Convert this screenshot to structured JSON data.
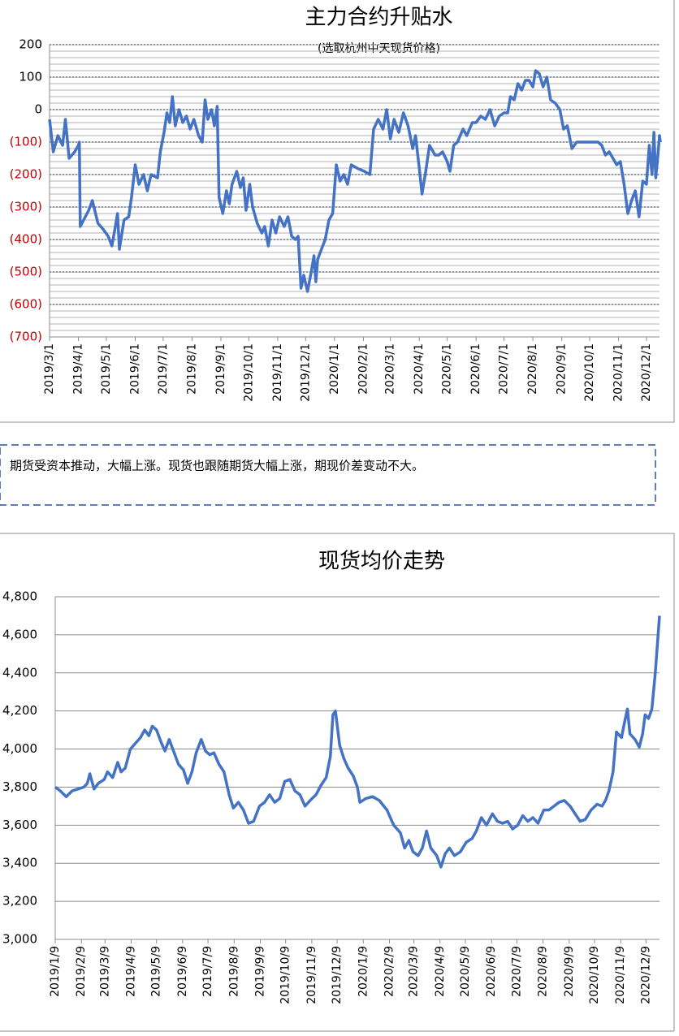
{
  "chart_data": [
    {
      "type": "line",
      "title": "主力合约升贴水",
      "subtitle": "(选取杭州中天现货价格)",
      "x": [
        "2019/3/1",
        "2019/3/5",
        "2019/3/10",
        "2019/3/15",
        "2019/3/18",
        "2019/3/22",
        "2019/3/28",
        "2019/4/1",
        "2019/4/2",
        "2019/4/3",
        "2019/4/12",
        "2019/4/16",
        "2019/4/22",
        "2019/4/28",
        "2019/5/3",
        "2019/5/7",
        "2019/5/10",
        "2019/5/13",
        "2019/5/15",
        "2019/5/20",
        "2019/5/25",
        "2019/5/28",
        "2019/6/1",
        "2019/6/5",
        "2019/6/10",
        "2019/6/14",
        "2019/6/18",
        "2019/6/25",
        "2019/6/28",
        "2019/7/2",
        "2019/7/5",
        "2019/7/8",
        "2019/7/11",
        "2019/7/14",
        "2019/7/18",
        "2019/7/22",
        "2019/7/26",
        "2019/7/30",
        "2019/8/3",
        "2019/8/8",
        "2019/8/12",
        "2019/8/15",
        "2019/8/18",
        "2019/8/22",
        "2019/8/25",
        "2019/8/28",
        "2019/8/30",
        "2019/9/3",
        "2019/9/7",
        "2019/9/10",
        "2019/9/13",
        "2019/9/18",
        "2019/9/22",
        "2019/9/25",
        "2019/9/28",
        "2019/10/2",
        "2019/10/5",
        "2019/10/10",
        "2019/10/15",
        "2019/10/18",
        "2019/10/22",
        "2019/10/26",
        "2019/10/30",
        "2019/11/3",
        "2019/11/8",
        "2019/11/12",
        "2019/11/16",
        "2019/11/20",
        "2019/11/23",
        "2019/11/26",
        "2019/11/29",
        "2019/12/3",
        "2019/12/7",
        "2019/12/10",
        "2019/12/12",
        "2019/12/14",
        "2019/12/18",
        "2019/12/22",
        "2019/12/26",
        "2019/12/30",
        "2020/1/3",
        "2020/1/7",
        "2020/1/11",
        "2020/1/15",
        "2020/1/19",
        "2020/1/25",
        "2020/2/2",
        "2020/2/8",
        "2020/2/12",
        "2020/2/17",
        "2020/2/22",
        "2020/2/26",
        "2020/3/1",
        "2020/3/5",
        "2020/3/10",
        "2020/3/15",
        "2020/3/20",
        "2020/3/25",
        "2020/3/28",
        "2020/4/1",
        "2020/4/4",
        "2020/4/8",
        "2020/4/12",
        "2020/4/18",
        "2020/4/22",
        "2020/4/26",
        "2020/5/1",
        "2020/5/4",
        "2020/5/8",
        "2020/5/12",
        "2020/5/18",
        "2020/5/22",
        "2020/5/28",
        "2020/6/1",
        "2020/6/6",
        "2020/6/11",
        "2020/6/16",
        "2020/6/21",
        "2020/6/26",
        "2020/7/1",
        "2020/7/5",
        "2020/7/8",
        "2020/7/12",
        "2020/7/16",
        "2020/7/20",
        "2020/7/24",
        "2020/7/28",
        "2020/8/1",
        "2020/8/4",
        "2020/8/8",
        "2020/8/12",
        "2020/8/16",
        "2020/8/20",
        "2020/8/25",
        "2020/8/30",
        "2020/9/3",
        "2020/9/7",
        "2020/9/12",
        "2020/9/17",
        "2020/9/22",
        "2020/9/28",
        "2020/10/4",
        "2020/10/10",
        "2020/10/14",
        "2020/10/18",
        "2020/10/22",
        "2020/10/26",
        "2020/10/30",
        "2020/11/3",
        "2020/11/7",
        "2020/11/11",
        "2020/11/15",
        "2020/11/19",
        "2020/11/23",
        "2020/11/27",
        "2020/12/1",
        "2020/12/4",
        "2020/12/7",
        "2020/12/9",
        "2020/12/11",
        "2020/12/13",
        "2020/12/15",
        "2020/12/16"
      ],
      "series": [
        {
          "color": "#4472c4",
          "values": [
            -30,
            -130,
            -80,
            -110,
            -30,
            -150,
            -130,
            -110,
            -100,
            -360,
            -310,
            -280,
            -350,
            -370,
            -390,
            -420,
            -370,
            -320,
            -430,
            -340,
            -330,
            -270,
            -170,
            -230,
            -200,
            -250,
            -200,
            -210,
            -130,
            -70,
            -10,
            -40,
            40,
            -50,
            0,
            -40,
            -20,
            -60,
            -30,
            -80,
            -100,
            30,
            -30,
            0,
            -50,
            10,
            -270,
            -320,
            -250,
            -290,
            -230,
            -190,
            -240,
            -210,
            -310,
            -230,
            -300,
            -350,
            -380,
            -360,
            -420,
            -340,
            -380,
            -330,
            -360,
            -330,
            -390,
            -400,
            -390,
            -550,
            -510,
            -560,
            -500,
            -450,
            -530,
            -460,
            -430,
            -400,
            -340,
            -320,
            -170,
            -220,
            -200,
            -230,
            -170,
            -180,
            -190,
            -200,
            -60,
            -30,
            -60,
            0,
            -90,
            -30,
            -70,
            -10,
            -50,
            -120,
            -80,
            -180,
            -260,
            -190,
            -110,
            -140,
            -140,
            -130,
            -160,
            -190,
            -110,
            -100,
            -60,
            -80,
            -40,
            -40,
            -20,
            -30,
            0,
            -50,
            -20,
            -10,
            -10,
            40,
            30,
            80,
            60,
            90,
            90,
            70,
            120,
            110,
            70,
            100,
            30,
            20,
            0,
            -60,
            -50,
            -120,
            -100,
            -100,
            -100,
            -100,
            -100,
            -110,
            -140,
            -130,
            -150,
            -170,
            -160,
            -230,
            -320,
            -280,
            -250,
            -330,
            -220,
            -230,
            -110,
            -200,
            -70,
            -210,
            -150,
            -80,
            -100
          ]
        }
      ],
      "ylim": [
        -700,
        200
      ],
      "yticks": [
        {
          "value": -700,
          "label": "(700)"
        },
        {
          "value": -600,
          "label": "(600)"
        },
        {
          "value": -500,
          "label": "(500)"
        },
        {
          "value": -400,
          "label": "(400)"
        },
        {
          "value": -300,
          "label": "(300)"
        },
        {
          "value": -200,
          "label": "(200)"
        },
        {
          "value": -100,
          "label": "(100)"
        },
        0,
        100,
        200
      ],
      "xticks": [
        "2019/3/1",
        "2019/4/1",
        "2019/5/1",
        "2019/6/1",
        "2019/7/1",
        "2019/8/1",
        "2019/9/1",
        "2019/10/1",
        "2019/11/1",
        "2019/12/1",
        "2020/1/1",
        "2020/2/1",
        "2020/3/1",
        "2020/4/1",
        "2020/5/1",
        "2020/6/1",
        "2020/7/1",
        "2020/8/1",
        "2020/9/1",
        "2020/10/1",
        "2020/11/1",
        "2020/12/1"
      ],
      "xlim": [
        "2019/3/1",
        "2020/12/15"
      ],
      "grid": true,
      "grid_style": "dotted",
      "minor_grid_step": 20,
      "negative_label_color": "#c00000"
    },
    {
      "type": "line",
      "title": "现货均价走势",
      "x": [
        "2019/1/9",
        "2019/1/15",
        "2019/1/22",
        "2019/1/29",
        "2019/2/5",
        "2019/2/12",
        "2019/2/16",
        "2019/2/19",
        "2019/2/24",
        "2019/3/1",
        "2019/3/8",
        "2019/3/12",
        "2019/3/18",
        "2019/3/24",
        "2019/3/28",
        "2019/4/2",
        "2019/4/8",
        "2019/4/14",
        "2019/4/20",
        "2019/4/25",
        "2019/4/30",
        "2019/5/4",
        "2019/5/9",
        "2019/5/15",
        "2019/5/19",
        "2019/5/24",
        "2019/5/30",
        "2019/6/4",
        "2019/6/10",
        "2019/6/15",
        "2019/6/20",
        "2019/6/25",
        "2019/7/1",
        "2019/7/6",
        "2019/7/11",
        "2019/7/16",
        "2019/7/22",
        "2019/7/28",
        "2019/8/3",
        "2019/8/8",
        "2019/8/14",
        "2019/8/20",
        "2019/8/26",
        "2019/9/1",
        "2019/9/8",
        "2019/9/14",
        "2019/9/20",
        "2019/9/26",
        "2019/10/2",
        "2019/10/8",
        "2019/10/14",
        "2019/10/20",
        "2019/10/26",
        "2019/11/1",
        "2019/11/7",
        "2019/11/14",
        "2019/11/20",
        "2019/11/26",
        "2019/12/1",
        "2019/12/4",
        "2019/12/7",
        "2019/12/12",
        "2019/12/17",
        "2019/12/22",
        "2019/12/28",
        "2020/1/2",
        "2020/1/5",
        "2020/1/12",
        "2020/1/20",
        "2020/1/28",
        "2020/2/6",
        "2020/2/14",
        "2020/2/22",
        "2020/2/27",
        "2020/3/3",
        "2020/3/8",
        "2020/3/14",
        "2020/3/19",
        "2020/3/24",
        "2020/3/29",
        "2020/4/5",
        "2020/4/10",
        "2020/4/15",
        "2020/4/20",
        "2020/4/26",
        "2020/5/3",
        "2020/5/10",
        "2020/5/17",
        "2020/5/22",
        "2020/5/28",
        "2020/6/3",
        "2020/6/10",
        "2020/6/16",
        "2020/6/22",
        "2020/6/28",
        "2020/7/4",
        "2020/7/10",
        "2020/7/16",
        "2020/7/22",
        "2020/7/28",
        "2020/8/3",
        "2020/8/10",
        "2020/8/16",
        "2020/8/22",
        "2020/8/28",
        "2020/9/3",
        "2020/9/10",
        "2020/9/16",
        "2020/9/22",
        "2020/9/28",
        "2020/10/5",
        "2020/10/12",
        "2020/10/18",
        "2020/10/22",
        "2020/10/26",
        "2020/10/31",
        "2020/11/4",
        "2020/11/10",
        "2020/11/14",
        "2020/11/17",
        "2020/11/20",
        "2020/11/26",
        "2020/12/1",
        "2020/12/5",
        "2020/12/8",
        "2020/12/12",
        "2020/12/16",
        "2020/12/20",
        "2020/12/25"
      ],
      "series": [
        {
          "color": "#4472c4",
          "values": [
            3800,
            3780,
            3750,
            3780,
            3790,
            3800,
            3820,
            3870,
            3790,
            3820,
            3840,
            3880,
            3850,
            3930,
            3880,
            3900,
            4000,
            4030,
            4060,
            4100,
            4070,
            4120,
            4100,
            4030,
            3990,
            4050,
            3980,
            3920,
            3890,
            3820,
            3880,
            3980,
            4050,
            3990,
            3970,
            3980,
            3920,
            3880,
            3760,
            3690,
            3720,
            3680,
            3610,
            3620,
            3700,
            3720,
            3760,
            3720,
            3740,
            3830,
            3840,
            3780,
            3760,
            3700,
            3730,
            3760,
            3810,
            3850,
            3960,
            4180,
            4200,
            4020,
            3950,
            3900,
            3860,
            3800,
            3720,
            3740,
            3750,
            3730,
            3680,
            3600,
            3560,
            3480,
            3520,
            3460,
            3440,
            3480,
            3570,
            3480,
            3440,
            3380,
            3450,
            3480,
            3440,
            3460,
            3510,
            3530,
            3570,
            3640,
            3600,
            3660,
            3620,
            3610,
            3620,
            3580,
            3600,
            3650,
            3620,
            3640,
            3610,
            3680,
            3680,
            3700,
            3720,
            3730,
            3700,
            3660,
            3620,
            3630,
            3680,
            3710,
            3700,
            3730,
            3780,
            3880,
            4090,
            4060,
            4150,
            4210,
            4080,
            4050,
            4010,
            4080,
            4180,
            4160,
            4210,
            4400,
            4700
          ]
        }
      ],
      "ylim": [
        3000,
        4800
      ],
      "yticks": [
        {
          "value": 3000,
          "label": "3,000"
        },
        {
          "value": 3200,
          "label": "3,200"
        },
        {
          "value": 3400,
          "label": "3,400"
        },
        {
          "value": 3600,
          "label": "3,600"
        },
        {
          "value": 3800,
          "label": "3,800"
        },
        {
          "value": 4000,
          "label": "4,000"
        },
        {
          "value": 4200,
          "label": "4,200"
        },
        {
          "value": 4400,
          "label": "4,400"
        },
        {
          "value": 4600,
          "label": "4,600"
        },
        {
          "value": 4800,
          "label": "4,800"
        }
      ],
      "xticks": [
        "2019/1/9",
        "2019/2/9",
        "2019/3/9",
        "2019/4/9",
        "2019/5/9",
        "2019/6/9",
        "2019/7/9",
        "2019/8/9",
        "2019/9/9",
        "2019/10/9",
        "2019/11/9",
        "2019/12/9",
        "2020/1/9",
        "2020/2/9",
        "2020/3/9",
        "2020/4/9",
        "2020/5/9",
        "2020/6/9",
        "2020/7/9",
        "2020/8/9",
        "2020/9/9",
        "2020/10/9",
        "2020/11/9",
        "2020/12/9"
      ],
      "xlim": [
        "2019/1/9",
        "2020/12/25"
      ],
      "grid": true,
      "grid_style": "solid"
    }
  ],
  "note": "期货受资本推动，大幅上涨。现货也跟随期货大幅上涨，期现价差变动不大。"
}
